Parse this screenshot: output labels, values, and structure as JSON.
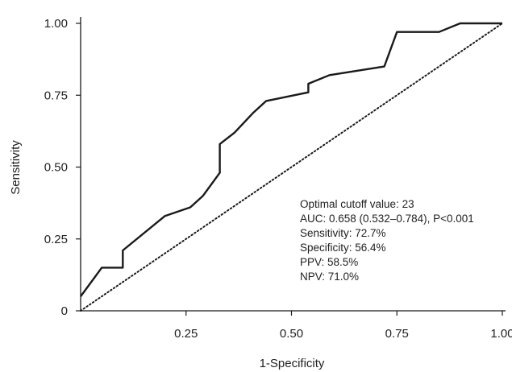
{
  "chart_data": {
    "type": "line",
    "xlabel": "1-Specificity",
    "ylabel": "Sensitivity",
    "xlim": [
      0,
      1
    ],
    "ylim": [
      0,
      1
    ],
    "x_ticks": [
      {
        "value": 0.25,
        "label": "0.25"
      },
      {
        "value": 0.5,
        "label": "0.50"
      },
      {
        "value": 0.75,
        "label": "0.75"
      },
      {
        "value": 1.0,
        "label": "1.00"
      }
    ],
    "y_ticks": [
      {
        "value": 0,
        "label": "0"
      },
      {
        "value": 0.25,
        "label": "0.25"
      },
      {
        "value": 0.5,
        "label": "0.50"
      },
      {
        "value": 0.75,
        "label": "0.75"
      },
      {
        "value": 1.0,
        "label": "1.00"
      }
    ],
    "grid": false,
    "series": [
      {
        "style": "solid",
        "color": "#1a1a1a",
        "points": [
          [
            0.0,
            0.05
          ],
          [
            0.02,
            0.09
          ],
          [
            0.05,
            0.15
          ],
          [
            0.1,
            0.15
          ],
          [
            0.1,
            0.21
          ],
          [
            0.2,
            0.33
          ],
          [
            0.26,
            0.36
          ],
          [
            0.29,
            0.4
          ],
          [
            0.33,
            0.48
          ],
          [
            0.33,
            0.58
          ],
          [
            0.365,
            0.62
          ],
          [
            0.41,
            0.69
          ],
          [
            0.44,
            0.73
          ],
          [
            0.54,
            0.76
          ],
          [
            0.54,
            0.79
          ],
          [
            0.59,
            0.82
          ],
          [
            0.72,
            0.85
          ],
          [
            0.75,
            0.97
          ],
          [
            0.85,
            0.97
          ],
          [
            0.9,
            1.0
          ],
          [
            1.0,
            1.0
          ]
        ]
      },
      {
        "style": "dotted",
        "color": "#1a1a1a",
        "points": [
          [
            0,
            0
          ],
          [
            1,
            1
          ]
        ]
      }
    ],
    "annotations": [
      "Optimal cutoff value: 23",
      "AUC: 0.658 (0.532–0.784), P<0.001",
      "Sensitivity: 72.7%",
      "Specificity: 56.4%",
      "PPV: 58.5%",
      "NPV: 71.0%"
    ]
  }
}
